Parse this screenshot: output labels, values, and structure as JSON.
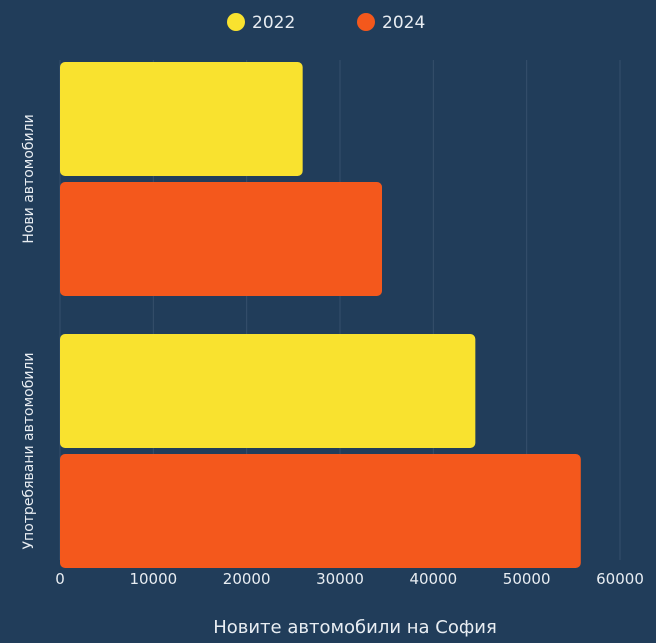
{
  "colors": {
    "background": "#213d5a",
    "series_2022": "#f9e22f",
    "series_2024": "#f4581c",
    "grid": "#35506c",
    "text": "#e8edf2"
  },
  "chart_data": {
    "type": "bar",
    "orientation": "horizontal",
    "categories": [
      "Нови автомобили",
      "Употребявани автомобили"
    ],
    "series": [
      {
        "name": "2022",
        "values": [
          26000,
          44500
        ]
      },
      {
        "name": "2024",
        "values": [
          34500,
          55800
        ]
      }
    ],
    "title": "",
    "xlabel": "Новите автомобили на София",
    "ylabel": "",
    "xlim": [
      0,
      60000
    ],
    "xticks": [
      0,
      10000,
      20000,
      30000,
      40000,
      50000,
      60000
    ],
    "xtick_labels": [
      "0",
      "10000",
      "20000",
      "30000",
      "40000",
      "50000",
      "60000"
    ],
    "grid": "vertical",
    "legend": "top-center"
  }
}
